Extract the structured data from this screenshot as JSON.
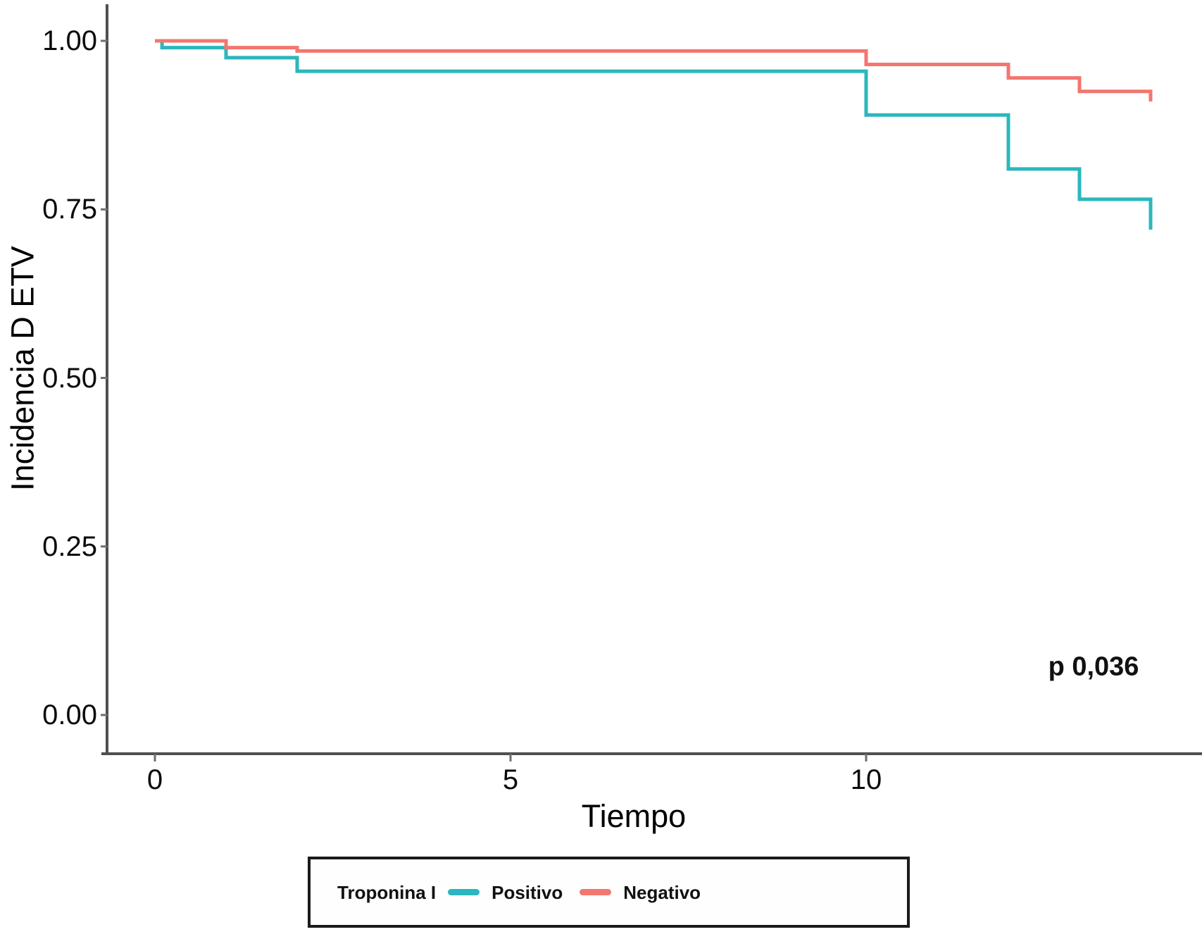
{
  "chart_data": {
    "type": "line",
    "subtype": "kaplan-meier-step",
    "title": "",
    "xlabel": "Tiempo",
    "ylabel": "Incidencia D ETV",
    "annotation_p_value": "p 0,036",
    "grid": false,
    "legend": {
      "position": "bottom",
      "title": "Troponina I",
      "entries": [
        {
          "label": "Positivo",
          "color": "#2ab7bd"
        },
        {
          "label": "Negativo",
          "color": "#f3766f"
        }
      ]
    },
    "xlim": [
      -0.7,
      14.7
    ],
    "ylim": [
      0.0,
      1.05
    ],
    "x_ticks": [
      {
        "v": 0,
        "label": "0"
      },
      {
        "v": 5,
        "label": "5"
      },
      {
        "v": 10,
        "label": "10"
      }
    ],
    "y_ticks": [
      {
        "v": 0.0,
        "label": "0.00"
      },
      {
        "v": 0.25,
        "label": "0.25"
      },
      {
        "v": 0.5,
        "label": "0.50"
      },
      {
        "v": 0.75,
        "label": "0.75"
      },
      {
        "v": 1.0,
        "label": "1.00"
      }
    ],
    "series": [
      {
        "name": "Positivo",
        "color": "#2ab7bd",
        "x": [
          0,
          0.1,
          1,
          2,
          10,
          12,
          13,
          14
        ],
        "y": [
          1.0,
          0.99,
          0.975,
          0.955,
          0.89,
          0.81,
          0.765,
          0.72
        ]
      },
      {
        "name": "Negativo",
        "color": "#f3766f",
        "x": [
          0,
          1,
          2,
          10,
          12,
          13,
          14
        ],
        "y": [
          1.0,
          0.99,
          0.985,
          0.965,
          0.945,
          0.925,
          0.91
        ]
      }
    ],
    "style": {
      "axis_color": "#4f4f4f",
      "tick_color": "#6e6e6e",
      "background": "#ffffff"
    }
  }
}
